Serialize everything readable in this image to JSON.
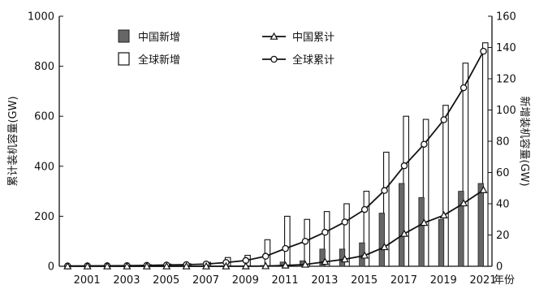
{
  "chart_data": {
    "type": "bar",
    "x": [
      2000,
      2001,
      2002,
      2003,
      2004,
      2005,
      2006,
      2007,
      2008,
      2009,
      2010,
      2011,
      2012,
      2013,
      2014,
      2015,
      2016,
      2017,
      2018,
      2019,
      2020,
      2021
    ],
    "x_tick_labels": [
      "2001",
      "2003",
      "2005",
      "2007",
      "2009",
      "2011",
      "2013",
      "2015",
      "2017",
      "2019",
      "2021"
    ],
    "x_unit_label": "年份",
    "ylabel_left": "累计装机容量(GW)",
    "ylabel_right": "新增装机容量(GW)",
    "ylim_left": [
      0,
      1000
    ],
    "ylim_right": [
      0,
      160
    ],
    "y_ticks_left": [
      "0",
      "200",
      "400",
      "600",
      "800",
      "1000"
    ],
    "y_ticks_right": [
      "0",
      "20",
      "40",
      "60",
      "80",
      "100",
      "120",
      "140",
      "160"
    ],
    "legend_position": "top-center",
    "series": [
      {
        "name": "中国新增",
        "type": "bar",
        "axis": "right",
        "color": "#666666",
        "values": [
          0,
          0,
          0,
          0,
          0,
          0,
          0.1,
          0.2,
          0.3,
          0.2,
          0.5,
          2.7,
          3.5,
          11,
          11,
          15,
          34,
          53,
          44,
          30,
          48,
          53
        ]
      },
      {
        "name": "全球新增",
        "type": "bar",
        "axis": "right",
        "color": "#ffffff",
        "values": [
          0.3,
          0.3,
          0.4,
          0.6,
          1.0,
          1.4,
          1.6,
          2.5,
          5.6,
          7.0,
          17,
          32,
          30,
          35,
          40,
          48,
          73,
          96,
          94,
          103,
          130,
          143
        ]
      },
      {
        "name": "中国累计",
        "type": "line",
        "axis": "left",
        "marker": "triangle",
        "values": [
          0,
          0,
          0,
          0,
          0,
          0,
          0,
          0,
          0,
          0.3,
          0.8,
          3.5,
          7,
          18,
          28,
          43,
          77,
          130,
          174,
          204,
          252,
          305
        ]
      },
      {
        "name": "全球累计",
        "type": "line",
        "axis": "left",
        "marker": "circle",
        "values": [
          1.2,
          1.5,
          1.9,
          2.5,
          3.5,
          5,
          6.5,
          9,
          15,
          23,
          40,
          71,
          100,
          136,
          177,
          227,
          303,
          402,
          488,
          586,
          714,
          860
        ]
      }
    ],
    "grid": false
  }
}
